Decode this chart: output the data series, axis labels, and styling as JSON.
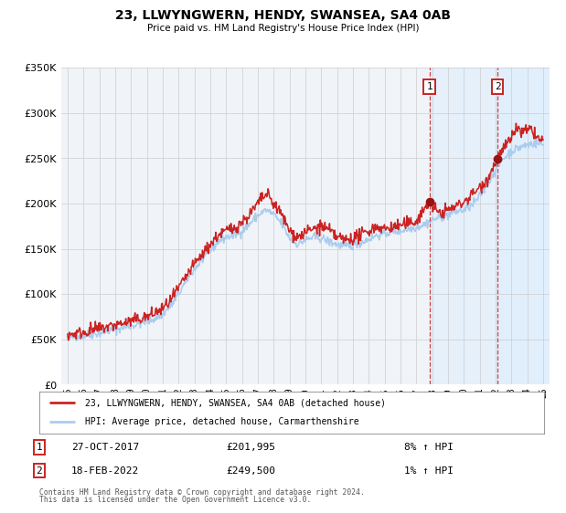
{
  "title": "23, LLWYNGWERN, HENDY, SWANSEA, SA4 0AB",
  "subtitle": "Price paid vs. HM Land Registry's House Price Index (HPI)",
  "legend_line1": "23, LLWYNGWERN, HENDY, SWANSEA, SA4 0AB (detached house)",
  "legend_line2": "HPI: Average price, detached house, Carmarthenshire",
  "footer1": "Contains HM Land Registry data © Crown copyright and database right 2024.",
  "footer2": "This data is licensed under the Open Government Licence v3.0.",
  "sale1_date": "27-OCT-2017",
  "sale1_price": 201995,
  "sale1_hpi": "8% ↑ HPI",
  "sale1_year": 2017.82,
  "sale2_date": "18-FEB-2022",
  "sale2_price": 249500,
  "sale2_hpi": "1% ↑ HPI",
  "sale2_year": 2022.13,
  "hpi_color": "#aaccee",
  "price_color": "#cc2222",
  "dot_color": "#991111",
  "background_color": "#f0f4f8",
  "shade_color": "#ddeeff",
  "grid_color": "#cccccc",
  "ylim": [
    0,
    350000
  ],
  "xlim_start": 1994.6,
  "xlim_end": 2025.4
}
